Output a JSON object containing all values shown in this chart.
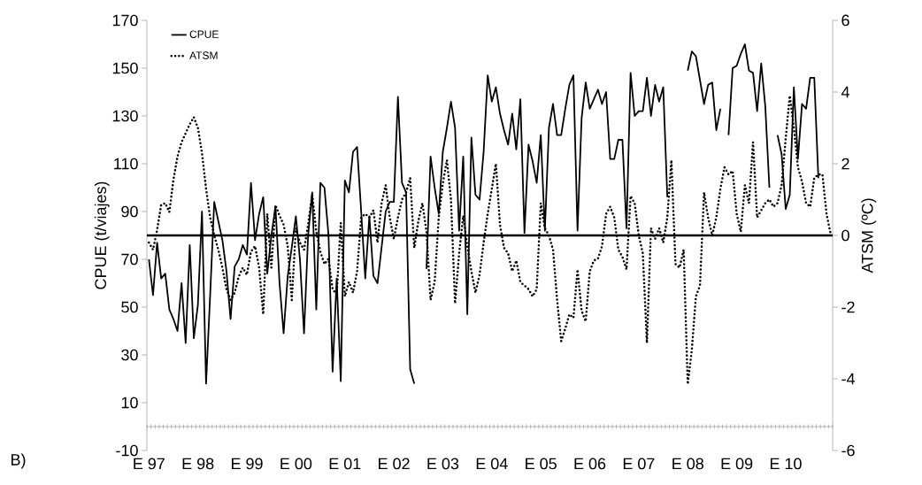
{
  "chart_data": {
    "type": "line",
    "categories": [
      "E 97",
      null,
      null,
      null,
      null,
      null,
      null,
      null,
      null,
      null,
      null,
      null,
      "E 98",
      null,
      null,
      null,
      null,
      null,
      null,
      null,
      null,
      null,
      null,
      null,
      "E 99",
      null,
      null,
      null,
      null,
      null,
      null,
      null,
      null,
      null,
      null,
      null,
      "E 00",
      null,
      null,
      null,
      null,
      null,
      null,
      null,
      null,
      null,
      null,
      null,
      "E 01",
      null,
      null,
      null,
      null,
      null,
      null,
      null,
      null,
      null,
      null,
      null,
      "E 02",
      null,
      null,
      null,
      null,
      null,
      null,
      null,
      null,
      null,
      null,
      null,
      "E 03",
      null,
      null,
      null,
      null,
      null,
      null,
      null,
      null,
      null,
      null,
      null,
      "E 04",
      null,
      null,
      null,
      null,
      null,
      null,
      null,
      null,
      null,
      null,
      null,
      "E 05",
      null,
      null,
      null,
      null,
      null,
      null,
      null,
      null,
      null,
      null,
      null,
      "E 06",
      null,
      null,
      null,
      null,
      null,
      null,
      null,
      null,
      null,
      null,
      null,
      "E 07",
      null,
      null,
      null,
      null,
      null,
      null,
      null,
      null,
      null,
      null,
      null,
      "E 08",
      null,
      null,
      null,
      null,
      null,
      null,
      null,
      null,
      null,
      null,
      null,
      "E 09",
      null,
      null,
      null,
      null,
      null,
      null,
      null,
      null,
      null,
      null,
      null,
      "E 10",
      null,
      null,
      null,
      null,
      null,
      null,
      null,
      null,
      null,
      null,
      null
    ],
    "series": [
      {
        "name": "CPUE",
        "color": "#000000",
        "line_style": "solid",
        "values": [
          70,
          55,
          77,
          62,
          64,
          49,
          45,
          40,
          60,
          35,
          76,
          37,
          51,
          90,
          18,
          55,
          94,
          86,
          78,
          65,
          45,
          67,
          70,
          76,
          72,
          102,
          78,
          89,
          96,
          64,
          80,
          92,
          60,
          39,
          63,
          75,
          88,
          70,
          39,
          80,
          98,
          49,
          102,
          100,
          80,
          23,
          62,
          19,
          103,
          98,
          115,
          117,
          90,
          62,
          88,
          63,
          60,
          75,
          90,
          94,
          94,
          138,
          102,
          98,
          24,
          18,
          null,
          null,
          66,
          113,
          100,
          89,
          115,
          125,
          136,
          125,
          82,
          113,
          47,
          121,
          97,
          95,
          115,
          147,
          136,
          142,
          131,
          124,
          118,
          131,
          116,
          137,
          81,
          118,
          111,
          102,
          122,
          82,
          125,
          135,
          122,
          122,
          133,
          143,
          147,
          82,
          129,
          144,
          133,
          137,
          141,
          135,
          140,
          112,
          112,
          120,
          120,
          83,
          148,
          130,
          132,
          132,
          146,
          130,
          143,
          136,
          142,
          96,
          null,
          null,
          null,
          null,
          149,
          157,
          155,
          145,
          135,
          143,
          144,
          124,
          133,
          null,
          122,
          150,
          151,
          156,
          160,
          149,
          148,
          132,
          152,
          134,
          100,
          null,
          122,
          114,
          91,
          97,
          142,
          112,
          135,
          133,
          146,
          146,
          104,
          null,
          null,
          null
        ]
      },
      {
        "name": "ATSM",
        "color": "#000000",
        "line_style": "dotted",
        "axis": "y2",
        "values": [
          -0.2,
          -0.4,
          0.15,
          0.85,
          0.9,
          0.65,
          1.55,
          2.2,
          2.6,
          2.85,
          3.1,
          3.3,
          3.0,
          2.3,
          1.3,
          0.5,
          0.0,
          -0.4,
          -0.9,
          -1.5,
          -1.8,
          -1.6,
          -1.15,
          -0.9,
          -1.1,
          -0.45,
          -0.3,
          -0.9,
          -2.2,
          0.6,
          -0.9,
          0.85,
          0.55,
          0.3,
          -0.3,
          -1.8,
          0.2,
          -0.2,
          -0.4,
          0.3,
          1.15,
          0.1,
          -0.45,
          -0.8,
          -0.65,
          -1.5,
          -1.65,
          0.35,
          -1.7,
          -1.3,
          -1.6,
          -1.0,
          0.5,
          0.6,
          0.5,
          0.7,
          -0.2,
          0.9,
          1.4,
          0.5,
          -0.1,
          0.5,
          1.0,
          1.2,
          1.6,
          -0.35,
          0.4,
          0.9,
          0.1,
          -1.8,
          -1.3,
          0.5,
          1.45,
          2.1,
          1.0,
          -1.9,
          -0.5,
          0.55,
          -0.3,
          -1.0,
          -1.6,
          -1.1,
          -0.2,
          0.6,
          1.3,
          2.0,
          0.3,
          -0.35,
          -0.5,
          -1.0,
          -0.7,
          -1.3,
          -1.4,
          -1.5,
          -1.7,
          -1.5,
          0.9,
          0.2,
          0.0,
          -0.4,
          -1.8,
          -2.95,
          -2.6,
          -2.2,
          -2.3,
          -0.95,
          -2.1,
          -2.4,
          -1.0,
          -0.7,
          -0.65,
          -0.3,
          0.6,
          0.8,
          0.5,
          -0.4,
          -0.6,
          -0.95,
          1.1,
          0.9,
          0.0,
          -0.5,
          -3.0,
          0.2,
          -0.1,
          0.2,
          -0.2,
          0.5,
          2.1,
          -0.8,
          -0.9,
          -0.4,
          -4.15,
          -3.2,
          -1.7,
          -1.4,
          1.2,
          0.5,
          0.0,
          0.5,
          1.3,
          1.9,
          1.7,
          1.8,
          0.6,
          0.1,
          1.4,
          0.9,
          2.6,
          0.5,
          0.7,
          0.9,
          1.0,
          0.8,
          0.9,
          1.4,
          2.7,
          3.9,
          3.0,
          1.9,
          1.5,
          0.9,
          0.8,
          1.6,
          1.7,
          1.7,
          0.6,
          0.05
        ]
      }
    ],
    "ylabel": "CPUE (t/viajes)",
    "y2label": "ATSM (ºC)",
    "ylim": [
      -10,
      170
    ],
    "yticks": [
      -10,
      10,
      30,
      50,
      70,
      90,
      110,
      130,
      150,
      170
    ],
    "y2lim": [
      -6,
      6
    ],
    "y2ticks": [
      -6,
      -4,
      -2,
      0,
      2,
      4,
      6
    ],
    "ref_lines": [
      {
        "axis": "y2",
        "value": 0,
        "color": "#000000"
      }
    ],
    "legend": "top left",
    "annotations": [
      "B)"
    ]
  }
}
